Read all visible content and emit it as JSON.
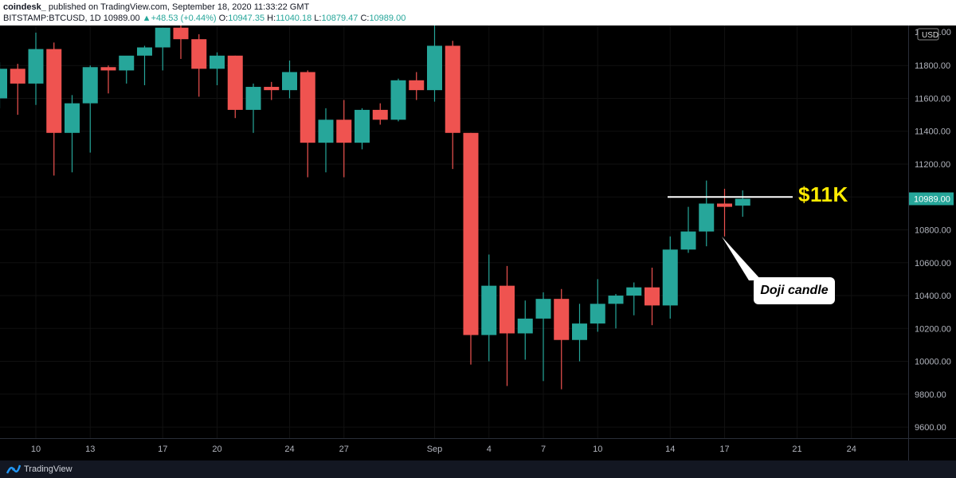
{
  "header": {
    "author": "coindesk_",
    "published": "published on TradingView.com, September 18, 2020 11:33:22 GMT",
    "symbol": "BITSTAMP:BTCUSD, 1D",
    "last": "10989.00",
    "change": "+48.53 (+0.44%)",
    "open": "10947.35",
    "high": "11040.18",
    "low": "10879.47",
    "close": "10989.00",
    "o_label": "O:",
    "h_label": "H:",
    "l_label": "L:",
    "c_label": "C:"
  },
  "price_axis": {
    "currency": "USD",
    "current_price_label": "10989.00",
    "current_price": 10989.0,
    "top_partial_label": "12000.00"
  },
  "annotations": {
    "level_label": "$11K",
    "level_value": 11000,
    "doji_label": "Doji candle"
  },
  "footer": {
    "brand": "TradingView"
  },
  "colors": {
    "up": "#26a69a",
    "down": "#ef5350",
    "background": "#000000",
    "annotation_line": "#ffffff",
    "level_label": "#ffeb00"
  },
  "chart_data": {
    "type": "candlestick",
    "ylim": [
      9450,
      12050
    ],
    "y_ticks": [
      9600,
      9800,
      10000,
      10200,
      10400,
      10600,
      10800,
      11000,
      11200,
      11400,
      11600,
      11800
    ],
    "y_tick_labels": [
      "9600.00",
      "9800.00",
      "10000.00",
      "10200.00",
      "10400.00",
      "10600.00",
      "10800.00",
      "11000.00",
      "11200.00",
      "11400.00",
      "11600.00",
      "11800.00"
    ],
    "x_tick_labels": [
      "10",
      "13",
      "17",
      "20",
      "24",
      "27",
      "Sep",
      "4",
      "7",
      "10",
      "14",
      "17",
      "21",
      "24"
    ],
    "x_tick_dates": [
      "2020-08-10",
      "2020-08-13",
      "2020-08-17",
      "2020-08-20",
      "2020-08-24",
      "2020-08-27",
      "2020-09-01",
      "2020-09-04",
      "2020-09-07",
      "2020-09-10",
      "2020-09-14",
      "2020-09-17",
      "2020-09-21",
      "2020-09-24"
    ],
    "x_range": [
      "2020-08-09",
      "2020-09-26"
    ],
    "candles": [
      {
        "date": "2020-08-08",
        "o": 11600,
        "h": 11820,
        "l": 11540,
        "c": 11780
      },
      {
        "date": "2020-08-09",
        "o": 11780,
        "h": 11810,
        "l": 11500,
        "c": 11690
      },
      {
        "date": "2020-08-10",
        "o": 11690,
        "h": 12000,
        "l": 11560,
        "c": 11900
      },
      {
        "date": "2020-08-11",
        "o": 11900,
        "h": 11940,
        "l": 11130,
        "c": 11390
      },
      {
        "date": "2020-08-12",
        "o": 11390,
        "h": 11620,
        "l": 11150,
        "c": 11570
      },
      {
        "date": "2020-08-13",
        "o": 11570,
        "h": 11800,
        "l": 11270,
        "c": 11790
      },
      {
        "date": "2020-08-14",
        "o": 11790,
        "h": 11800,
        "l": 11630,
        "c": 11770
      },
      {
        "date": "2020-08-15",
        "o": 11770,
        "h": 11840,
        "l": 11690,
        "c": 11860
      },
      {
        "date": "2020-08-16",
        "o": 11860,
        "h": 11920,
        "l": 11680,
        "c": 11910
      },
      {
        "date": "2020-08-17",
        "o": 11910,
        "h": 12010,
        "l": 11770,
        "c": 12030
      },
      {
        "date": "2020-08-18",
        "o": 12030,
        "h": 12050,
        "l": 11840,
        "c": 11960
      },
      {
        "date": "2020-08-19",
        "o": 11960,
        "h": 11990,
        "l": 11610,
        "c": 11780
      },
      {
        "date": "2020-08-20",
        "o": 11780,
        "h": 11880,
        "l": 11680,
        "c": 11860
      },
      {
        "date": "2020-08-21",
        "o": 11860,
        "h": 11860,
        "l": 11480,
        "c": 11530
      },
      {
        "date": "2020-08-22",
        "o": 11530,
        "h": 11690,
        "l": 11390,
        "c": 11670
      },
      {
        "date": "2020-08-23",
        "o": 11670,
        "h": 11700,
        "l": 11590,
        "c": 11650
      },
      {
        "date": "2020-08-24",
        "o": 11650,
        "h": 11830,
        "l": 11600,
        "c": 11760
      },
      {
        "date": "2020-08-25",
        "o": 11760,
        "h": 11770,
        "l": 11120,
        "c": 11330
      },
      {
        "date": "2020-08-26",
        "o": 11330,
        "h": 11540,
        "l": 11150,
        "c": 11470
      },
      {
        "date": "2020-08-27",
        "o": 11470,
        "h": 11590,
        "l": 11120,
        "c": 11330
      },
      {
        "date": "2020-08-28",
        "o": 11330,
        "h": 11540,
        "l": 11290,
        "c": 11530
      },
      {
        "date": "2020-08-29",
        "o": 11530,
        "h": 11570,
        "l": 11440,
        "c": 11470
      },
      {
        "date": "2020-08-30",
        "o": 11470,
        "h": 11720,
        "l": 11460,
        "c": 11710
      },
      {
        "date": "2020-08-31",
        "o": 11710,
        "h": 11760,
        "l": 11590,
        "c": 11650
      },
      {
        "date": "2020-09-01",
        "o": 11650,
        "h": 12050,
        "l": 11580,
        "c": 11920
      },
      {
        "date": "2020-09-02",
        "o": 11920,
        "h": 11950,
        "l": 11170,
        "c": 11390
      },
      {
        "date": "2020-09-03",
        "o": 11390,
        "h": 11390,
        "l": 9980,
        "c": 10160
      },
      {
        "date": "2020-09-04",
        "o": 10160,
        "h": 10650,
        "l": 10000,
        "c": 10460
      },
      {
        "date": "2020-09-05",
        "o": 10460,
        "h": 10580,
        "l": 9850,
        "c": 10170
      },
      {
        "date": "2020-09-06",
        "o": 10170,
        "h": 10370,
        "l": 10010,
        "c": 10260
      },
      {
        "date": "2020-09-07",
        "o": 10260,
        "h": 10420,
        "l": 9880,
        "c": 10380
      },
      {
        "date": "2020-09-08",
        "o": 10380,
        "h": 10440,
        "l": 9830,
        "c": 10130
      },
      {
        "date": "2020-09-09",
        "o": 10130,
        "h": 10350,
        "l": 10000,
        "c": 10230
      },
      {
        "date": "2020-09-10",
        "o": 10230,
        "h": 10500,
        "l": 10180,
        "c": 10350
      },
      {
        "date": "2020-09-11",
        "o": 10350,
        "h": 10410,
        "l": 10200,
        "c": 10400
      },
      {
        "date": "2020-09-12",
        "o": 10400,
        "h": 10480,
        "l": 10280,
        "c": 10450
      },
      {
        "date": "2020-09-13",
        "o": 10450,
        "h": 10570,
        "l": 10220,
        "c": 10340
      },
      {
        "date": "2020-09-14",
        "o": 10340,
        "h": 10760,
        "l": 10260,
        "c": 10680
      },
      {
        "date": "2020-09-15",
        "o": 10680,
        "h": 10940,
        "l": 10660,
        "c": 10790
      },
      {
        "date": "2020-09-16",
        "o": 10790,
        "h": 11100,
        "l": 10700,
        "c": 10960
      },
      {
        "date": "2020-09-17",
        "o": 10960,
        "h": 11050,
        "l": 10760,
        "c": 10940
      },
      {
        "date": "2020-09-18",
        "o": 10947.35,
        "h": 11040.18,
        "l": 10879.47,
        "c": 10989.0
      }
    ]
  }
}
